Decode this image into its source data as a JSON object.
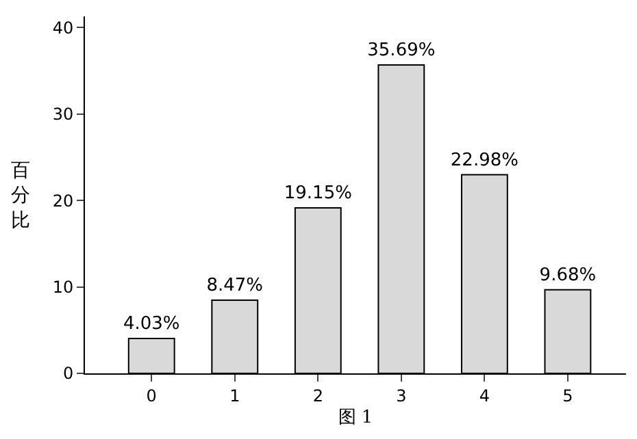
{
  "chart_data": {
    "type": "bar",
    "xlabel": "图 1",
    "ylabel": "百分比",
    "categories": [
      "0",
      "1",
      "2",
      "3",
      "4",
      "5"
    ],
    "values": [
      4.03,
      8.47,
      19.15,
      35.69,
      22.98,
      9.68
    ],
    "value_labels": [
      "4.03%",
      "8.47%",
      "19.15%",
      "35.69%",
      "22.98%",
      "9.68%"
    ],
    "color": "#d9d9d9",
    "ylim": [
      0,
      41.3
    ],
    "yticks": [
      0,
      10,
      20,
      30,
      40
    ],
    "legend": false
  }
}
